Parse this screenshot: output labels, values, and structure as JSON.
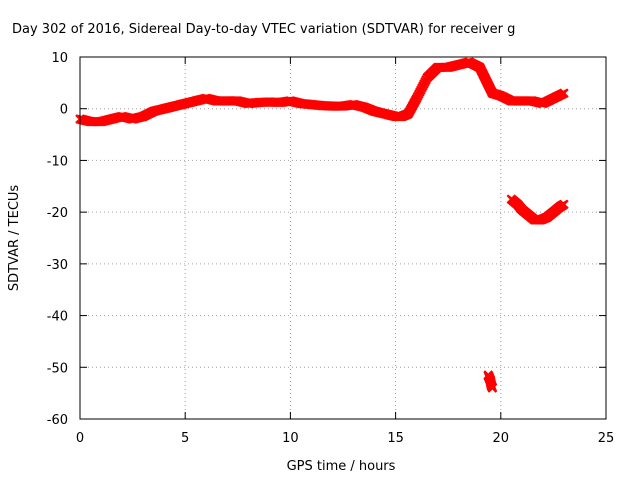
{
  "chart_data": {
    "type": "scatter",
    "title": "Day 302 of 2016, Sidereal Day-to-day VTEC variation (SDTVAR) for receiver g",
    "xlabel": "GPS time / hours",
    "ylabel": "SDTVAR / TECUs",
    "xlim": [
      0,
      25
    ],
    "ylim": [
      -60,
      10
    ],
    "xticks": [
      0,
      5,
      10,
      15,
      20,
      25
    ],
    "xtick_labels": [
      "0",
      "5",
      "10",
      "15",
      "20",
      "25"
    ],
    "yticks": [
      -60,
      -50,
      -40,
      -30,
      -20,
      -10,
      0,
      10
    ],
    "ytick_labels": [
      "-60",
      "-50",
      "-40",
      "-30",
      "-20",
      "-10",
      "0",
      "10"
    ],
    "grid": true,
    "grid_style": "dotted",
    "series_color": "#ff0000",
    "series": [
      {
        "x": [
          0.0,
          0.5,
          1.0,
          1.5,
          2.0,
          2.5,
          3.0,
          3.5,
          4.0,
          4.5,
          5.0,
          5.5,
          6.0,
          6.5,
          7.0,
          7.5,
          8.0,
          8.5,
          9.0,
          9.5,
          10.0,
          10.5,
          11.0,
          11.5,
          12.0,
          12.5,
          13.0,
          13.5,
          14.0,
          14.5,
          15.0,
          15.3,
          15.6,
          16.0,
          16.5,
          17.0,
          17.5,
          18.0,
          18.5,
          19.0,
          19.3,
          19.6,
          20.0,
          20.5,
          21.0,
          21.5,
          22.0,
          22.5,
          23.0
        ],
        "y": [
          -2.0,
          -2.5,
          -2.5,
          -2.0,
          -1.5,
          -2.0,
          -1.5,
          -0.5,
          0.0,
          0.5,
          1.0,
          1.5,
          2.0,
          1.5,
          1.5,
          1.5,
          1.0,
          1.2,
          1.3,
          1.2,
          1.5,
          1.0,
          0.8,
          0.6,
          0.5,
          0.5,
          0.8,
          0.3,
          -0.5,
          -1.0,
          -1.5,
          -1.5,
          -1.0,
          2.0,
          6.0,
          8.0,
          8.0,
          8.5,
          9.0,
          8.0,
          5.5,
          3.0,
          2.5,
          1.5,
          1.5,
          1.5,
          1.0,
          2.0,
          3.0
        ]
      },
      {
        "x": [
          20.5,
          20.8,
          21.0,
          21.3,
          21.6,
          21.9,
          22.2,
          22.5,
          22.8,
          23.0
        ],
        "y": [
          -17.5,
          -18.5,
          -19.5,
          -20.5,
          -21.5,
          -21.5,
          -21.0,
          -20.0,
          -19.0,
          -18.5
        ]
      },
      {
        "x": [
          19.4,
          19.45,
          19.5,
          19.55,
          19.6
        ],
        "y": [
          -51.5,
          -52.0,
          -52.5,
          -53.5,
          -54.0
        ]
      }
    ]
  }
}
